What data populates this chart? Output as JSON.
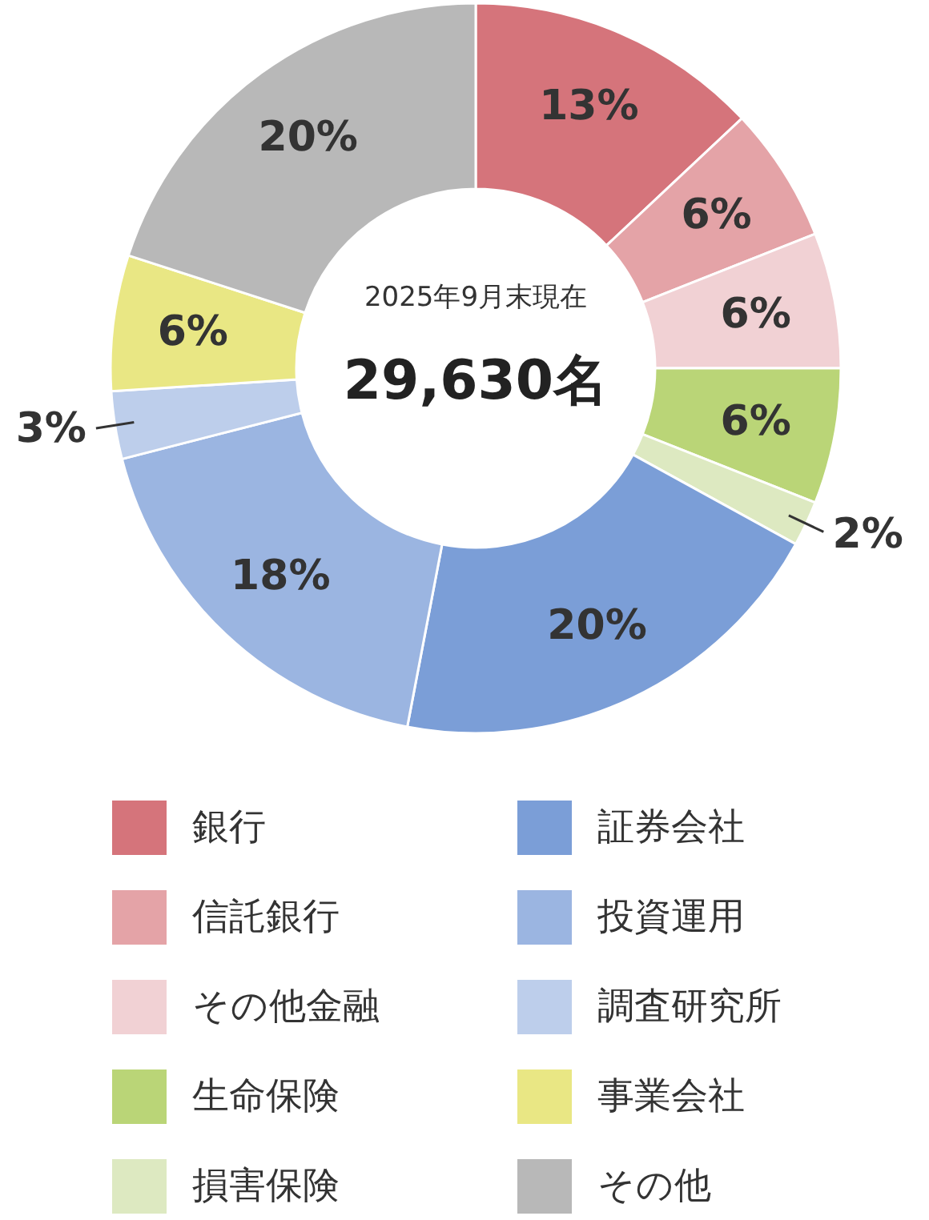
{
  "chart_data": {
    "type": "donut",
    "categories": [
      "銀行",
      "信託銀行",
      "その他金融",
      "生命保険",
      "損害保険",
      "証券会社",
      "投資運用",
      "調査研究所",
      "事業会社",
      "その他"
    ],
    "values": [
      13,
      6,
      6,
      6,
      2,
      20,
      18,
      3,
      6,
      20
    ],
    "value_labels": [
      "13%",
      "6%",
      "6%",
      "6%",
      "2%",
      "20%",
      "18%",
      "3%",
      "6%",
      "20%"
    ],
    "colors": [
      "#d5747b",
      "#e4a3a7",
      "#f1d1d4",
      "#bad577",
      "#dde9c1",
      "#7b9ed7",
      "#9bb5e1",
      "#bdceeb",
      "#e9e784",
      "#b8b8b8"
    ],
    "annotations": [
      "2025年9月末現在",
      "29,630名"
    ],
    "legend": "bottom"
  }
}
